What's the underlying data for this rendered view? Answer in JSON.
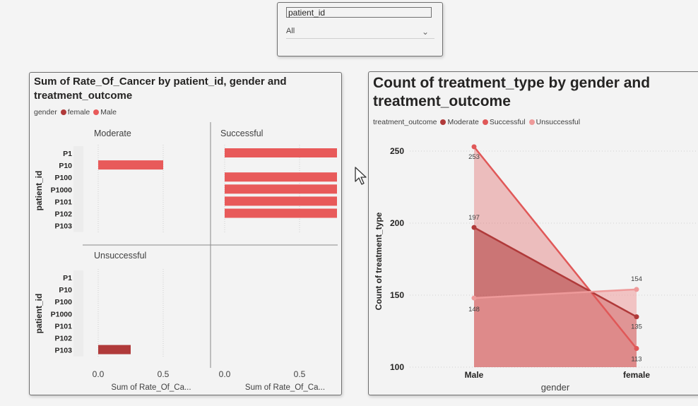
{
  "slicer": {
    "title": "patient_id",
    "value": "All"
  },
  "left_visual": {
    "title_line1": "Sum of Rate_Of_Cancer by patient_id, gender and",
    "title_line2": "treatment_outcome",
    "legend_title": "gender",
    "legend": [
      {
        "name": "female",
        "color": "#b03a3a"
      },
      {
        "name": "Male",
        "color": "#e85a5a"
      }
    ]
  },
  "right_visual": {
    "title_line1": "Count of treatment_type by gender and",
    "title_line2": "treatment_outcome",
    "legend_title": "treatment_outcome",
    "legend": [
      {
        "name": "Moderate",
        "color": "#b03a3a"
      },
      {
        "name": "Successful",
        "color": "#e05858"
      },
      {
        "name": "Unsuccessful",
        "color": "#ee9a9a"
      }
    ]
  },
  "chart_data": [
    {
      "type": "bar",
      "orientation": "horizontal",
      "title": "Sum of Rate_Of_Cancer by patient_id, gender and treatment_outcome",
      "ylabel": "patient_id",
      "xlabel": "Sum of Rate_Of_Ca...",
      "categories": [
        "P1",
        "P10",
        "P100",
        "P1000",
        "P101",
        "P102",
        "P103"
      ],
      "xlim": [
        0,
        0.75
      ],
      "xticks": [
        "0.0",
        "0.5"
      ],
      "panels": [
        {
          "title": "Moderate",
          "series": [
            {
              "name": "Male",
              "values": [
                null,
                0.5,
                null,
                null,
                null,
                null,
                null
              ]
            }
          ]
        },
        {
          "title": "Successful",
          "series": [
            {
              "name": "Male",
              "values": [
                0.75,
                null,
                0.75,
                0.75,
                0.75,
                0.75,
                null
              ]
            }
          ]
        },
        {
          "title": "Unsuccessful",
          "series": [
            {
              "name": "female",
              "values": [
                null,
                null,
                null,
                null,
                null,
                null,
                0.25
              ]
            }
          ]
        }
      ]
    },
    {
      "type": "area",
      "title": "Count of treatment_type by gender and treatment_outcome",
      "xlabel": "gender",
      "ylabel": "Count of treatment_type",
      "categories": [
        "Male",
        "female"
      ],
      "ylim": [
        100,
        260
      ],
      "yticks": [
        100,
        150,
        200,
        250
      ],
      "series": [
        {
          "name": "Moderate",
          "values": [
            197,
            135
          ],
          "color": "#b03a3a"
        },
        {
          "name": "Successful",
          "values": [
            253,
            113
          ],
          "color": "#e05858"
        },
        {
          "name": "Unsuccessful",
          "values": [
            148,
            154
          ],
          "color": "#ee9a9a"
        }
      ]
    }
  ]
}
